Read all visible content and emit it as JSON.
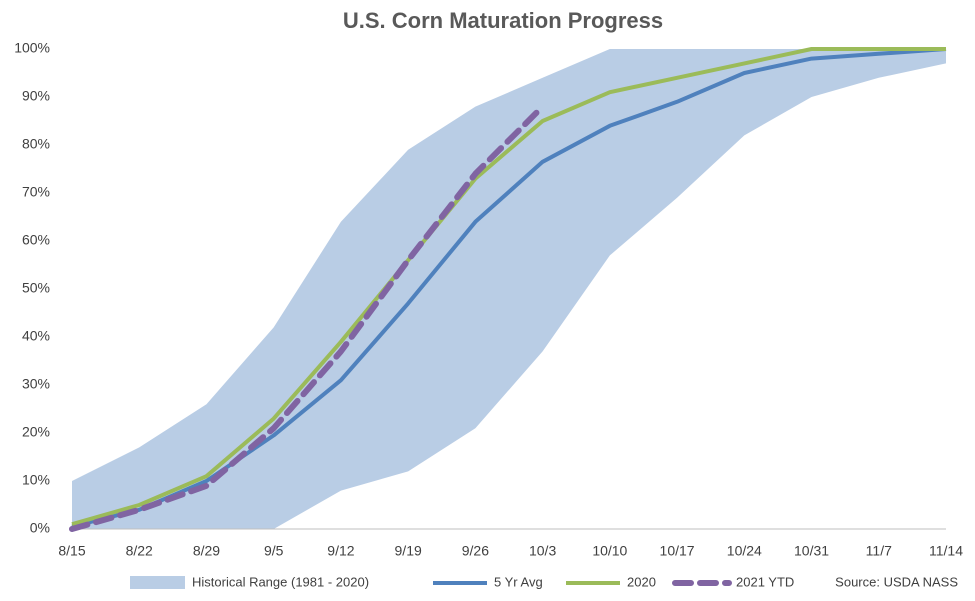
{
  "chart_data": {
    "type": "line",
    "title": "U.S. Corn Maturation Progress",
    "categories": [
      "8/15",
      "8/22",
      "8/29",
      "9/5",
      "9/12",
      "9/19",
      "9/26",
      "10/3",
      "10/10",
      "10/17",
      "10/24",
      "10/31",
      "11/7",
      "11/14"
    ],
    "ylim": [
      0,
      100
    ],
    "yticks": [
      {
        "value": 0,
        "label": "0%"
      },
      {
        "value": 10,
        "label": "10%"
      },
      {
        "value": 20,
        "label": "20%"
      },
      {
        "value": 30,
        "label": "30%"
      },
      {
        "value": 40,
        "label": "40%"
      },
      {
        "value": 50,
        "label": "50%"
      },
      {
        "value": 60,
        "label": "60%"
      },
      {
        "value": 70,
        "label": "70%"
      },
      {
        "value": 80,
        "label": "80%"
      },
      {
        "value": 90,
        "label": "90%"
      },
      {
        "value": 100,
        "label": "100%"
      }
    ],
    "grid": false,
    "band": {
      "name": "Historical Range (1981 - 2020)",
      "color": "#b9cde5",
      "high": [
        10,
        17,
        26,
        42,
        64,
        79,
        88,
        94,
        100,
        100,
        100,
        100,
        100,
        100
      ],
      "low": [
        0,
        0,
        0,
        0,
        8,
        12,
        21,
        37,
        57,
        69,
        82,
        90,
        94,
        97
      ]
    },
    "series": [
      {
        "name": "5 Yr Avg",
        "color": "#4f81bd",
        "dash": false,
        "values": [
          0.5,
          4,
          10,
          19.5,
          31,
          47,
          64,
          76.5,
          84,
          89,
          95,
          98,
          99,
          100
        ]
      },
      {
        "name": "2020",
        "color": "#9bbb59",
        "dash": false,
        "values": [
          1,
          5,
          11,
          23,
          39,
          56,
          73,
          85,
          91,
          94,
          97,
          100,
          100,
          100
        ]
      },
      {
        "name": "2021 YTD",
        "color": "#8064a2",
        "dash": true,
        "values": [
          0,
          4,
          9,
          21,
          37,
          56,
          74,
          88,
          null,
          null,
          null,
          null,
          null,
          null
        ]
      }
    ],
    "source": "Source: USDA NASS"
  }
}
